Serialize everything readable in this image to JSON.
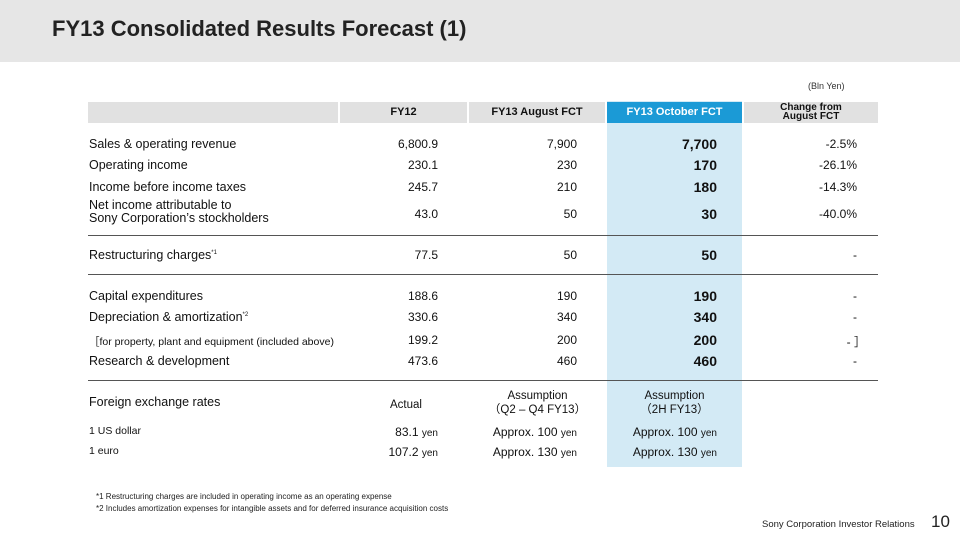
{
  "title": "FY13  Consolidated Results Forecast (1)",
  "unit": "(Bln Yen)",
  "header": {
    "fy12": "FY12",
    "aug": "FY13 August FCT",
    "oct": "FY13 October FCT",
    "change_line1": "Change from",
    "change_line2": "August FCT"
  },
  "rows": [
    {
      "label": "Sales & operating revenue",
      "fy12": "6,800.9",
      "aug": "7,900",
      "oct": "7,700",
      "change": "-2.5%"
    },
    {
      "label": "Operating income",
      "fy12": "230.1",
      "aug": "230",
      "oct": "170",
      "change": "-26.1%"
    },
    {
      "label": "Income before income taxes",
      "fy12": "245.7",
      "aug": "210",
      "oct": "180",
      "change": "-14.3%"
    },
    {
      "label_line1": "Net income attributable to",
      "label_line2": "Sony Corporation’s stockholders",
      "fy12": "43.0",
      "aug": "50",
      "oct": "30",
      "change": "-40.0%"
    },
    {
      "label": "Restructuring charges",
      "sup": "*1",
      "fy12": "77.5",
      "aug": "50",
      "oct": "50",
      "change": "-"
    },
    {
      "label": "Capital expenditures",
      "fy12": "188.6",
      "aug": "190",
      "oct": "190",
      "change": "-"
    },
    {
      "label": "Depreciation & amortization",
      "sup": "*2",
      "fy12": "330.6",
      "aug": "340",
      "oct": "340",
      "change": "-"
    },
    {
      "label": "［for property, plant and equipment (included above)",
      "fy12": "199.2",
      "aug": "200",
      "oct": "200",
      "change": "-  ］"
    },
    {
      "label": "Research & development",
      "fy12": "473.6",
      "aug": "460",
      "oct": "460",
      "change": "-"
    }
  ],
  "fx": {
    "label": "Foreign exchange rates",
    "actual": "Actual",
    "aug_line1": "Assumption",
    "aug_line2": "（Q2 – Q4 FY13）",
    "oct_line1": "Assumption",
    "oct_line2": "（2H FY13）",
    "rows": [
      {
        "label": "1 US dollar",
        "actual": "83.1",
        "aug": "Approx. 100",
        "oct": "Approx. 100",
        "unit": "yen"
      },
      {
        "label": "1 euro",
        "actual": "107.2",
        "aug": "Approx. 130",
        "oct": "Approx. 130",
        "unit": "yen"
      }
    ]
  },
  "notes": [
    "*1 Restructuring charges are included in operating income as an operating expense",
    "*2 Includes amortization expenses for intangible assets and for deferred insurance acquisition costs"
  ],
  "footer": "Sony Corporation  Investor Relations",
  "page_number": "10",
  "colors": {
    "accent": "#1b9ad6",
    "highlight": "#d3eaf5",
    "header_bg": "#e1e1e1",
    "title_bg": "#e6e6e6"
  }
}
